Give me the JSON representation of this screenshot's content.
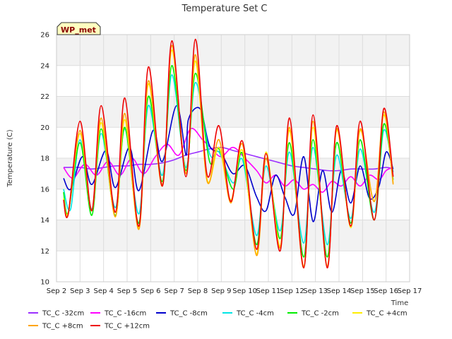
{
  "chart_data": {
    "type": "line",
    "title": "Temperature Set C",
    "xlabel": "Time",
    "ylabel": "Temperature (C)",
    "badge": "WP_met",
    "xlim": [
      2,
      17
    ],
    "ylim": [
      10,
      26
    ],
    "x_ticks": [
      2,
      3,
      4,
      5,
      6,
      7,
      8,
      9,
      10,
      11,
      12,
      13,
      14,
      15,
      16,
      17
    ],
    "x_tick_labels": [
      "Sep 2",
      "Sep 3",
      "Sep 4",
      "Sep 5",
      "Sep 6",
      "Sep 7",
      "Sep 8",
      "Sep 9",
      "Sep 10",
      "Sep 11",
      "Sep 12",
      "Sep 13",
      "Sep 14",
      "Sep 15",
      "Sep 16",
      "Sep 17"
    ],
    "y_ticks": [
      10,
      12,
      14,
      16,
      18,
      20,
      22,
      24,
      26
    ],
    "y_tick_labels": [
      "10",
      "12",
      "14",
      "16",
      "18",
      "20",
      "22",
      "24",
      "26"
    ],
    "grid": true,
    "legend_position": "bottom",
    "series": [
      {
        "name": "TC_C -32cm",
        "color": "#9b30ff",
        "x": [
          2.3,
          3.0,
          3.5,
          4.0,
          4.5,
          5.0,
          5.5,
          6.0,
          6.5,
          7.0,
          7.5,
          8.0,
          8.5,
          9.0,
          9.5,
          10.0,
          10.5,
          11.0,
          11.5,
          12.0,
          12.5,
          13.0,
          13.5,
          14.0,
          14.5,
          15.0,
          15.5,
          16.0,
          16.3
        ],
        "y": [
          17.4,
          17.4,
          17.3,
          17.4,
          17.5,
          17.5,
          17.6,
          17.6,
          17.7,
          17.9,
          18.2,
          18.4,
          18.6,
          18.7,
          18.5,
          18.3,
          18.1,
          17.9,
          17.7,
          17.5,
          17.4,
          17.3,
          17.2,
          17.2,
          17.3,
          17.3,
          17.3,
          17.4,
          17.3
        ]
      },
      {
        "name": "TC_C -16cm",
        "color": "#ff00ff",
        "x": [
          2.3,
          2.7,
          3.2,
          3.7,
          4.2,
          4.7,
          5.2,
          5.7,
          6.2,
          6.7,
          7.2,
          7.7,
          8.2,
          8.6,
          9.0,
          9.5,
          10.0,
          10.5,
          10.9,
          11.3,
          11.7,
          12.1,
          12.5,
          12.9,
          13.3,
          13.7,
          14.1,
          14.5,
          14.9,
          15.3,
          15.7,
          16.0,
          16.3
        ],
        "y": [
          17.4,
          16.7,
          17.6,
          16.9,
          17.8,
          16.9,
          18.0,
          17.0,
          18.1,
          18.9,
          18.2,
          19.9,
          19.2,
          18.6,
          18.1,
          18.7,
          18.0,
          17.2,
          16.4,
          16.9,
          16.2,
          16.6,
          16.0,
          16.3,
          15.8,
          16.5,
          16.2,
          16.8,
          16.2,
          16.9,
          16.6,
          17.2,
          17.4
        ]
      },
      {
        "name": "TC_C -8cm",
        "color": "#0000cc",
        "x": [
          2.3,
          2.6,
          3.1,
          3.5,
          4.1,
          4.5,
          5.1,
          5.5,
          6.1,
          6.5,
          7.1,
          7.5,
          7.6,
          8.1,
          8.5,
          9.0,
          9.5,
          10.0,
          10.5,
          10.9,
          11.3,
          11.7,
          12.1,
          12.5,
          12.9,
          13.3,
          13.7,
          14.1,
          14.5,
          14.9,
          15.3,
          15.7,
          16.0,
          16.3
        ],
        "y": [
          16.7,
          16.0,
          18.1,
          16.3,
          18.5,
          16.1,
          18.7,
          15.9,
          19.8,
          17.8,
          21.4,
          18.2,
          20.5,
          21.2,
          18.8,
          18.3,
          17.0,
          17.5,
          15.5,
          14.6,
          16.9,
          15.5,
          14.4,
          18.1,
          13.9,
          17.2,
          14.5,
          17.2,
          15.1,
          17.5,
          15.4,
          16.2,
          18.4,
          17.3
        ]
      },
      {
        "name": "TC_C -4cm",
        "color": "#00e5e5",
        "x": [
          2.3,
          2.6,
          3.0,
          3.5,
          3.9,
          4.5,
          4.9,
          5.5,
          5.9,
          6.5,
          6.9,
          7.5,
          7.9,
          8.5,
          8.9,
          9.5,
          9.9,
          10.5,
          10.9,
          11.5,
          11.9,
          12.5,
          12.9,
          13.5,
          13.9,
          14.5,
          14.9,
          15.5,
          15.9,
          16.3
        ],
        "y": [
          16.0,
          14.7,
          19.2,
          14.7,
          19.6,
          14.8,
          19.9,
          14.4,
          21.4,
          16.9,
          23.4,
          17.4,
          22.9,
          18.3,
          18.4,
          16.4,
          17.9,
          13.0,
          17.5,
          13.3,
          18.4,
          12.5,
          18.7,
          12.4,
          18.2,
          14.1,
          18.6,
          14.5,
          19.8,
          17.1
        ]
      },
      {
        "name": "TC_C -2cm",
        "color": "#00ee00",
        "x": [
          2.3,
          2.5,
          3.0,
          3.5,
          3.9,
          4.5,
          4.9,
          5.5,
          5.9,
          6.5,
          6.9,
          7.5,
          7.9,
          8.5,
          8.9,
          9.5,
          9.9,
          10.5,
          10.9,
          11.5,
          11.9,
          12.5,
          12.9,
          13.5,
          13.9,
          14.5,
          14.9,
          15.5,
          15.9,
          16.3
        ],
        "y": [
          15.8,
          14.5,
          19.0,
          14.3,
          19.9,
          14.3,
          20.0,
          13.8,
          22.0,
          16.5,
          24.0,
          17.2,
          23.5,
          17.8,
          18.6,
          16.0,
          18.3,
          12.4,
          18.0,
          12.8,
          19.0,
          11.6,
          19.2,
          11.6,
          19.0,
          13.8,
          19.2,
          14.0,
          20.2,
          16.6
        ]
      },
      {
        "name": "TC_C +4cm",
        "color": "#ffee00",
        "x": [
          2.3,
          2.5,
          3.0,
          3.5,
          3.9,
          4.5,
          4.9,
          5.5,
          5.9,
          6.5,
          6.9,
          7.5,
          7.9,
          8.4,
          8.9,
          9.4,
          9.9,
          10.5,
          10.9,
          11.5,
          11.9,
          12.5,
          12.9,
          13.5,
          13.9,
          14.5,
          14.9,
          15.5,
          15.9,
          16.3
        ],
        "y": [
          15.4,
          14.5,
          19.6,
          14.6,
          20.3,
          14.2,
          20.5,
          13.5,
          22.8,
          16.2,
          25.0,
          17.0,
          24.3,
          16.6,
          18.7,
          15.3,
          18.5,
          11.8,
          18.4,
          12.3,
          19.8,
          11.0,
          20.0,
          11.0,
          19.8,
          13.5,
          19.8,
          15.2,
          20.8,
          16.4
        ]
      },
      {
        "name": "TC_C +8cm",
        "color": "#ffa500",
        "x": [
          2.3,
          2.5,
          3.0,
          3.5,
          3.9,
          4.5,
          4.9,
          5.5,
          5.9,
          6.5,
          6.9,
          7.5,
          7.9,
          8.4,
          8.9,
          9.4,
          9.9,
          10.5,
          10.9,
          11.5,
          11.9,
          12.5,
          12.9,
          13.5,
          13.9,
          14.5,
          14.9,
          15.5,
          15.9,
          16.3
        ],
        "y": [
          15.3,
          14.4,
          19.8,
          14.6,
          20.6,
          14.2,
          20.9,
          13.4,
          23.0,
          16.3,
          25.3,
          17.0,
          24.7,
          16.5,
          19.2,
          15.1,
          18.9,
          11.7,
          18.0,
          12.2,
          20.0,
          10.9,
          20.4,
          11.0,
          19.9,
          13.6,
          19.9,
          15.2,
          21.0,
          16.3
        ]
      },
      {
        "name": "TC_C +12cm",
        "color": "#ee0000",
        "x": [
          2.3,
          2.5,
          3.0,
          3.5,
          3.9,
          4.5,
          4.9,
          5.5,
          5.9,
          6.5,
          6.9,
          7.5,
          7.9,
          8.4,
          8.9,
          9.4,
          9.9,
          10.5,
          10.9,
          11.5,
          11.9,
          12.5,
          12.9,
          13.5,
          13.9,
          14.5,
          14.9,
          15.5,
          15.9,
          16.3
        ],
        "y": [
          15.3,
          14.4,
          20.4,
          14.6,
          21.4,
          14.5,
          21.9,
          13.6,
          23.9,
          16.2,
          25.6,
          16.8,
          25.7,
          16.9,
          20.1,
          15.2,
          19.1,
          12.1,
          18.3,
          12.0,
          20.6,
          10.9,
          20.8,
          10.9,
          20.1,
          13.6,
          20.4,
          14.0,
          21.2,
          16.8
        ]
      }
    ]
  }
}
